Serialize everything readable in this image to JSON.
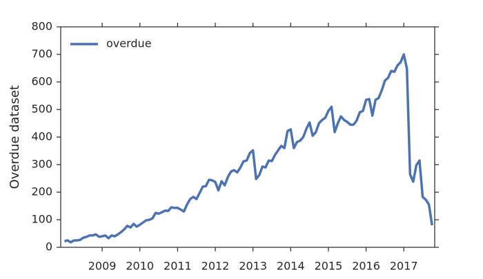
{
  "chart_data": {
    "type": "line",
    "ylabel": "Overdue dataset",
    "legend": "upper left",
    "grid": false,
    "x": [
      2008.0,
      2008.083,
      2008.167,
      2008.25,
      2008.333,
      2008.417,
      2008.5,
      2008.583,
      2008.667,
      2008.75,
      2008.833,
      2008.917,
      2009.0,
      2009.083,
      2009.167,
      2009.25,
      2009.333,
      2009.417,
      2009.5,
      2009.583,
      2009.667,
      2009.75,
      2009.833,
      2009.917,
      2010.0,
      2010.083,
      2010.167,
      2010.25,
      2010.333,
      2010.417,
      2010.5,
      2010.583,
      2010.667,
      2010.75,
      2010.833,
      2010.917,
      2011.0,
      2011.083,
      2011.167,
      2011.25,
      2011.333,
      2011.417,
      2011.5,
      2011.583,
      2011.667,
      2011.75,
      2011.833,
      2011.917,
      2012.0,
      2012.083,
      2012.167,
      2012.25,
      2012.333,
      2012.417,
      2012.5,
      2012.583,
      2012.667,
      2012.75,
      2012.833,
      2012.917,
      2013.0,
      2013.083,
      2013.167,
      2013.25,
      2013.333,
      2013.417,
      2013.5,
      2013.583,
      2013.667,
      2013.75,
      2013.833,
      2013.917,
      2014.0,
      2014.083,
      2014.167,
      2014.25,
      2014.333,
      2014.417,
      2014.5,
      2014.583,
      2014.667,
      2014.75,
      2014.833,
      2014.917,
      2015.0,
      2015.083,
      2015.167,
      2015.25,
      2015.333,
      2015.417,
      2015.5,
      2015.583,
      2015.667,
      2015.75,
      2015.833,
      2015.917,
      2016.0,
      2016.083,
      2016.167,
      2016.25,
      2016.333,
      2016.417,
      2016.5,
      2016.583,
      2016.667,
      2016.75,
      2016.833,
      2016.917,
      2017.0,
      2017.083,
      2017.167,
      2017.25,
      2017.333,
      2017.417,
      2017.5,
      2017.583,
      2017.667,
      2017.75
    ],
    "series": [
      {
        "name": "overdue",
        "color": "#4c72b0",
        "values": [
          22,
          25,
          18,
          25,
          25,
          27,
          35,
          38,
          43,
          43,
          47,
          38,
          40,
          43,
          33,
          43,
          40,
          47,
          55,
          65,
          78,
          72,
          85,
          75,
          82,
          90,
          98,
          100,
          105,
          125,
          122,
          127,
          133,
          132,
          145,
          143,
          143,
          137,
          130,
          155,
          175,
          183,
          175,
          197,
          220,
          222,
          245,
          243,
          237,
          207,
          240,
          225,
          255,
          275,
          280,
          272,
          290,
          312,
          315,
          342,
          352,
          248,
          262,
          293,
          290,
          315,
          313,
          335,
          352,
          368,
          360,
          422,
          428,
          360,
          382,
          387,
          400,
          430,
          453,
          405,
          418,
          450,
          462,
          470,
          495,
          510,
          418,
          450,
          475,
          462,
          455,
          445,
          445,
          460,
          490,
          495,
          535,
          538,
          478,
          535,
          542,
          570,
          605,
          615,
          640,
          637,
          660,
          672,
          700,
          648,
          265,
          238,
          298,
          315,
          183,
          173,
          155,
          80
        ]
      }
    ],
    "xlim": [
      2007.9,
      2017.82
    ],
    "xticks": [
      2009,
      2010,
      2011,
      2012,
      2013,
      2014,
      2015,
      2016,
      2017
    ],
    "ylim": [
      0,
      800
    ],
    "yticks": [
      0,
      100,
      200,
      300,
      400,
      500,
      600,
      700,
      800
    ]
  }
}
